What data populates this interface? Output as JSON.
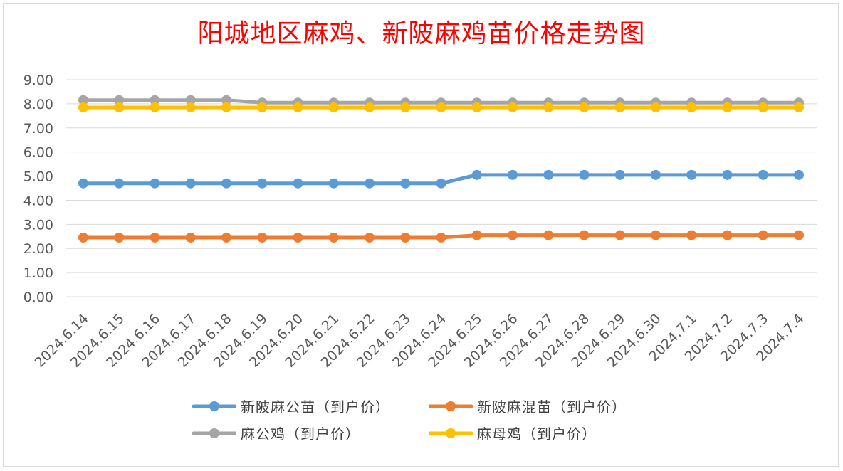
{
  "chart_data": {
    "type": "line",
    "title": "阳城地区麻鸡、新陂麻鸡苗价格走势图",
    "xlabel": "",
    "ylabel": "",
    "ylim": [
      0,
      9
    ],
    "yticks": [
      "0.00",
      "1.00",
      "2.00",
      "3.00",
      "4.00",
      "5.00",
      "6.00",
      "7.00",
      "8.00",
      "9.00"
    ],
    "grid": true,
    "legend_position": "bottom",
    "categories": [
      "2024.6.14",
      "2024.6.15",
      "2024.6.16",
      "2024.6.17",
      "2024.6.18",
      "2024.6.19",
      "2024.6.20",
      "2024.6.21",
      "2024.6.22",
      "2024.6.23",
      "2024.6.24",
      "2024.6.25",
      "2024.6.26",
      "2024.6.27",
      "2024.6.28",
      "2024.6.29",
      "2024.6.30",
      "2024.7.1",
      "2024.7.2",
      "2024.7.3",
      "2024.7.4"
    ],
    "series": [
      {
        "name": "新陂麻公苗（到户价）",
        "color": "#5b9bd5",
        "values": [
          4.7,
          4.7,
          4.7,
          4.7,
          4.7,
          4.7,
          4.7,
          4.7,
          4.7,
          4.7,
          4.7,
          5.05,
          5.05,
          5.05,
          5.05,
          5.05,
          5.05,
          5.05,
          5.05,
          5.05,
          5.05
        ]
      },
      {
        "name": "新陂麻混苗（到户价）",
        "color": "#ed7d31",
        "values": [
          2.45,
          2.45,
          2.45,
          2.45,
          2.45,
          2.45,
          2.45,
          2.45,
          2.45,
          2.45,
          2.45,
          2.55,
          2.55,
          2.55,
          2.55,
          2.55,
          2.55,
          2.55,
          2.55,
          2.55,
          2.55
        ]
      },
      {
        "name": "麻公鸡（到户价）",
        "color": "#a5a5a5",
        "values": [
          8.15,
          8.15,
          8.15,
          8.15,
          8.15,
          8.05,
          8.05,
          8.05,
          8.05,
          8.05,
          8.05,
          8.05,
          8.05,
          8.05,
          8.05,
          8.05,
          8.05,
          8.05,
          8.05,
          8.05,
          8.05
        ]
      },
      {
        "name": "麻母鸡（到户价）",
        "color": "#ffc000",
        "values": [
          7.85,
          7.85,
          7.85,
          7.85,
          7.85,
          7.85,
          7.85,
          7.85,
          7.85,
          7.85,
          7.85,
          7.85,
          7.85,
          7.85,
          7.85,
          7.85,
          7.85,
          7.85,
          7.85,
          7.85,
          7.85
        ]
      }
    ]
  }
}
